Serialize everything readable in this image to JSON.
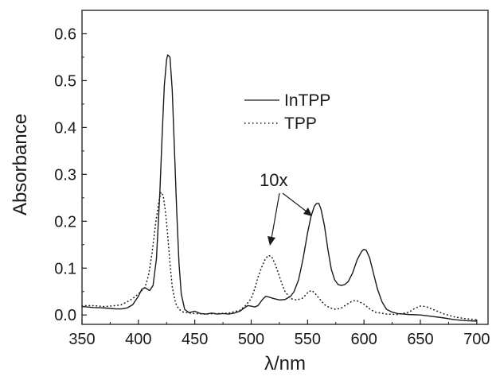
{
  "chart_data": {
    "type": "line",
    "xlabel": "λ/nm",
    "ylabel": "Absorbance",
    "xlim": [
      350,
      710
    ],
    "ylim": [
      -0.02,
      0.65
    ],
    "xticks": [
      350,
      400,
      450,
      500,
      550,
      600,
      650,
      700
    ],
    "yticks": [
      0.0,
      0.1,
      0.2,
      0.3,
      0.4,
      0.5,
      0.6
    ],
    "ytick_labels": [
      "0.0",
      "0.1",
      "0.2",
      "0.3",
      "0.4",
      "0.5",
      "0.6"
    ],
    "grid": false,
    "legend_position": "upper-center",
    "annotation": "10x",
    "series": [
      {
        "name": "InTPP",
        "style": "solid",
        "color": "#1a1a1a",
        "x": [
          350,
          360,
          370,
          380,
          385,
          390,
          395,
          400,
          403,
          406,
          408,
          410,
          413,
          416,
          419,
          421,
          423,
          425,
          426,
          428,
          430,
          432,
          434,
          436,
          438,
          441,
          445,
          450,
          455,
          460,
          465,
          470,
          475,
          480,
          485,
          490,
          494,
          497,
          500,
          503,
          506,
          510,
          513,
          516,
          520,
          525,
          530,
          535,
          538,
          542,
          546,
          550,
          553,
          556,
          558,
          560,
          562,
          565,
          568,
          571,
          574,
          577,
          580,
          583,
          586,
          590,
          594,
          598,
          600,
          602,
          605,
          608,
          612,
          616,
          620,
          625,
          630,
          640,
          650,
          660,
          670,
          680,
          690,
          700
        ],
        "y": [
          0.018,
          0.016,
          0.015,
          0.013,
          0.013,
          0.015,
          0.022,
          0.04,
          0.055,
          0.058,
          0.055,
          0.052,
          0.063,
          0.12,
          0.26,
          0.38,
          0.49,
          0.545,
          0.555,
          0.55,
          0.48,
          0.35,
          0.22,
          0.11,
          0.045,
          0.012,
          0.005,
          0.008,
          0.003,
          0.002,
          0.004,
          0.002,
          0.003,
          0.002,
          0.004,
          0.008,
          0.015,
          0.02,
          0.019,
          0.017,
          0.02,
          0.033,
          0.04,
          0.038,
          0.035,
          0.032,
          0.033,
          0.04,
          0.05,
          0.075,
          0.12,
          0.175,
          0.21,
          0.232,
          0.238,
          0.238,
          0.225,
          0.19,
          0.14,
          0.098,
          0.075,
          0.065,
          0.063,
          0.065,
          0.071,
          0.09,
          0.118,
          0.136,
          0.14,
          0.138,
          0.122,
          0.093,
          0.055,
          0.028,
          0.012,
          0.006,
          0.003,
          0.001,
          0.0,
          -0.003,
          -0.006,
          -0.01,
          -0.012,
          -0.013
        ]
      },
      {
        "name": "TPP",
        "style": "dotted",
        "color": "#1a1a1a",
        "x": [
          350,
          360,
          370,
          380,
          385,
          390,
          395,
          400,
          403,
          406,
          409,
          412,
          415,
          418,
          420,
          422,
          424,
          426,
          428,
          430,
          433,
          436,
          440,
          445,
          450,
          460,
          470,
          480,
          490,
          495,
          500,
          503,
          506,
          509,
          512,
          515,
          518,
          521,
          524,
          527,
          530,
          535,
          540,
          545,
          548,
          551,
          554,
          557,
          560,
          565,
          570,
          575,
          580,
          585,
          590,
          593,
          596,
          600,
          605,
          610,
          620,
          630,
          640,
          645,
          650,
          655,
          660,
          670,
          680,
          690,
          700
        ],
        "y": [
          0.02,
          0.02,
          0.018,
          0.02,
          0.022,
          0.028,
          0.035,
          0.045,
          0.052,
          0.06,
          0.085,
          0.13,
          0.19,
          0.24,
          0.262,
          0.255,
          0.22,
          0.17,
          0.11,
          0.06,
          0.025,
          0.012,
          0.006,
          0.004,
          0.003,
          0.002,
          0.003,
          0.004,
          0.01,
          0.02,
          0.035,
          0.055,
          0.08,
          0.1,
          0.117,
          0.127,
          0.125,
          0.11,
          0.09,
          0.068,
          0.05,
          0.035,
          0.032,
          0.035,
          0.042,
          0.05,
          0.052,
          0.045,
          0.036,
          0.022,
          0.015,
          0.012,
          0.015,
          0.023,
          0.03,
          0.031,
          0.028,
          0.023,
          0.013,
          0.006,
          0.002,
          0.001,
          0.006,
          0.014,
          0.019,
          0.018,
          0.013,
          0.003,
          -0.004,
          -0.008,
          -0.01
        ]
      }
    ]
  }
}
